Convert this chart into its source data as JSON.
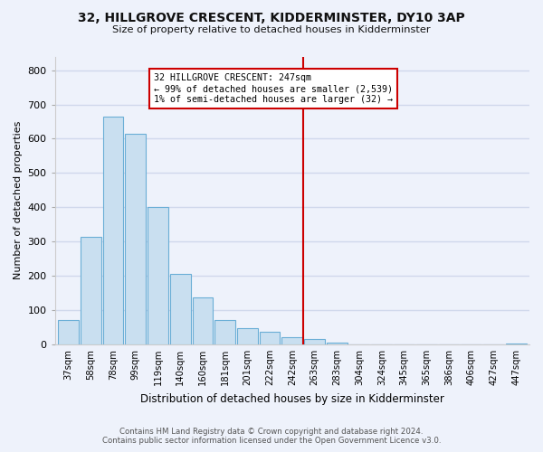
{
  "title": "32, HILLGROVE CRESCENT, KIDDERMINSTER, DY10 3AP",
  "subtitle": "Size of property relative to detached houses in Kidderminster",
  "xlabel": "Distribution of detached houses by size in Kidderminster",
  "ylabel": "Number of detached properties",
  "footer_line1": "Contains HM Land Registry data © Crown copyright and database right 2024.",
  "footer_line2": "Contains public sector information licensed under the Open Government Licence v3.0.",
  "bar_labels": [
    "37sqm",
    "58sqm",
    "78sqm",
    "99sqm",
    "119sqm",
    "140sqm",
    "160sqm",
    "181sqm",
    "201sqm",
    "222sqm",
    "242sqm",
    "263sqm",
    "283sqm",
    "304sqm",
    "324sqm",
    "345sqm",
    "365sqm",
    "386sqm",
    "406sqm",
    "427sqm",
    "447sqm"
  ],
  "bar_values": [
    72,
    315,
    665,
    615,
    400,
    205,
    138,
    70,
    47,
    37,
    20,
    15,
    5,
    0,
    0,
    0,
    0,
    0,
    0,
    0,
    3
  ],
  "bar_color": "#c9dff0",
  "bar_edge_color": "#6aaed6",
  "ylim": [
    0,
    840
  ],
  "yticks": [
    0,
    100,
    200,
    300,
    400,
    500,
    600,
    700,
    800
  ],
  "vline_x_index": 11,
  "vline_color": "#cc0000",
  "annotation_title": "32 HILLGROVE CRESCENT: 247sqm",
  "annotation_line1": "← 99% of detached houses are smaller (2,539)",
  "annotation_line2": "1% of semi-detached houses are larger (32) →",
  "annotation_box_color": "#cc0000",
  "background_color": "#eef2fb",
  "grid_color": "#d0d8ec"
}
